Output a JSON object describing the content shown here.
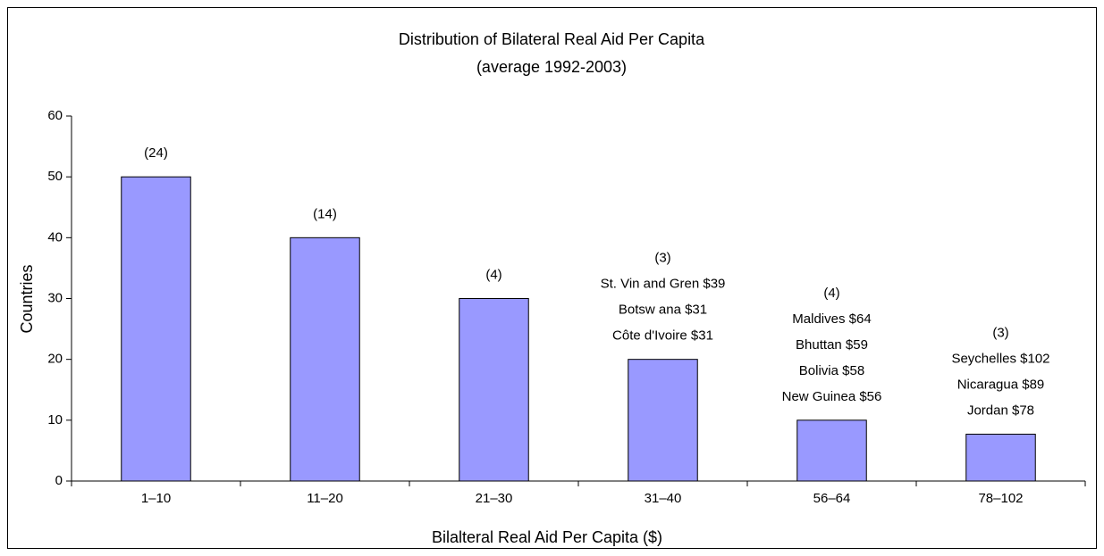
{
  "chart_data": {
    "type": "bar",
    "title": [
      "Distribution of Bilateral Real Aid Per Capita",
      "(average 1992-2003)"
    ],
    "xlabel": "Bilalteral Real Aid Per Capita ($)",
    "ylabel": "Countries",
    "categories": [
      "1–10",
      "11–20",
      "21–30",
      "31–40",
      "56–64",
      "78–102"
    ],
    "values": [
      50,
      40,
      30,
      20,
      10,
      7.7
    ],
    "color": "#9999ff",
    "ylim": [
      0,
      60
    ],
    "yticks": [
      0,
      10,
      20,
      30,
      40,
      50,
      60
    ],
    "annotations": [
      [
        "(24)"
      ],
      [
        "(14)"
      ],
      [
        "(4)"
      ],
      [
        "(3)",
        "St. Vin and Gren $39",
        "Botsw ana $31",
        "Côte d'Ivoire $31"
      ],
      [
        "(4)",
        "Maldives $64",
        "Bhuttan $59",
        "Bolivia $58",
        "New Guinea $56"
      ],
      [
        "(3)",
        "Seychelles $102",
        "Nicaragua $89",
        "Jordan $78"
      ]
    ]
  }
}
